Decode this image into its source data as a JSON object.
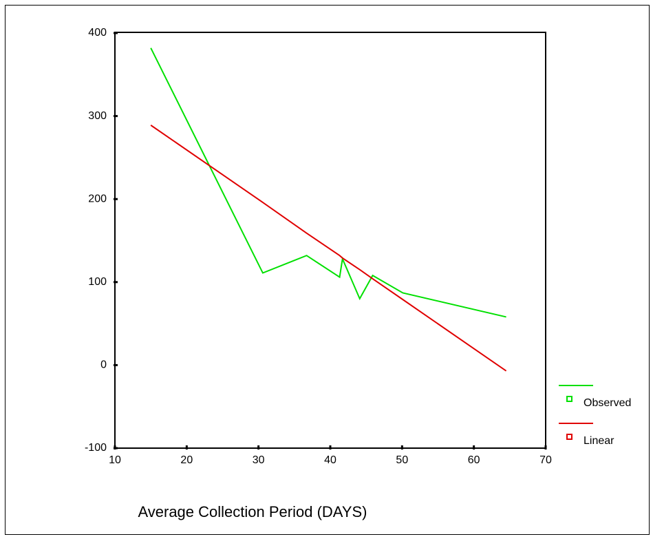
{
  "chart_data": {
    "type": "line",
    "x_label": "Average Collection Period (DAYS)",
    "x": [
      15,
      30.6,
      36.7,
      41.3,
      41.7,
      44.1,
      45.9,
      50.1,
      64.5
    ],
    "series": [
      {
        "name": "Observed",
        "color": "#00e000",
        "values": [
          382,
          111,
          132,
          106,
          128,
          80,
          108,
          87,
          58
        ]
      },
      {
        "name": "Linear",
        "color": "#e00000",
        "values": [
          289,
          196,
          159,
          132,
          129,
          115,
          104,
          79,
          -7
        ]
      }
    ],
    "xlim": [
      10,
      70
    ],
    "xticks": [
      10,
      20,
      30,
      40,
      50,
      60,
      70
    ],
    "ylim": [
      -100,
      400
    ],
    "yticks": [
      -100,
      0,
      100,
      200,
      300,
      400
    ],
    "legend": "right"
  }
}
